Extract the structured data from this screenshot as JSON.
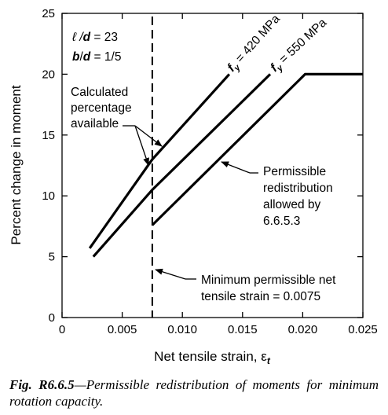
{
  "chart_data": {
    "type": "line",
    "xlabel": "Net tensile strain, ε",
    "xlabel_sub": "t",
    "ylabel": "Percent change in moment",
    "xlim": [
      0,
      0.025
    ],
    "ylim": [
      0,
      25
    ],
    "x_ticks": [
      0,
      0.005,
      0.01,
      0.015,
      0.02,
      0.025
    ],
    "x_tick_labels": [
      "0",
      "0.005",
      "0.010",
      "0.015",
      "0.020",
      "0.025"
    ],
    "y_ticks": [
      0,
      5,
      10,
      15,
      20,
      25
    ],
    "y_tick_labels": [
      "0",
      "5",
      "10",
      "15",
      "20",
      "25"
    ],
    "grid": false,
    "series": [
      {
        "name": "fy = 420 MPa",
        "label_prefix": "f",
        "label_sub": "y",
        "label_rest": " = 420 MPa",
        "x": [
          0.0023,
          0.0075,
          0.0139
        ],
        "y": [
          5.7,
          13.0,
          20.0
        ]
      },
      {
        "name": "fy = 550 MPa",
        "label_prefix": "f",
        "label_sub": "y",
        "label_rest": " = 550 MPa",
        "x": [
          0.0026,
          0.0075,
          0.0173
        ],
        "y": [
          5.0,
          10.5,
          20.0
        ]
      },
      {
        "name": "Permissible redistribution",
        "x": [
          0.0075,
          0.0202,
          0.025
        ],
        "y": [
          7.6,
          20.0,
          20.0
        ]
      }
    ],
    "vline": {
      "x": 0.0075,
      "style": "dashed"
    },
    "params": {
      "ld_prefix": "ℓ /",
      "ld_var": "d",
      "ld_value": " = 23",
      "bd_var1": "b",
      "bd_mid": "/",
      "bd_var2": "d",
      "bd_value": " = 1/5"
    },
    "annotations": {
      "calc": [
        "Calculated",
        "percentage",
        "available"
      ],
      "perm": [
        "Permissible",
        "redistribution",
        "allowed by",
        "6.6.5.3"
      ],
      "min": [
        "Minimum permissible net",
        "tensile strain = 0.0075"
      ]
    }
  },
  "caption": {
    "label": "Fig. R6.6.5",
    "text": "—Permissible redistribution of moments for minimum rotation capacity."
  }
}
